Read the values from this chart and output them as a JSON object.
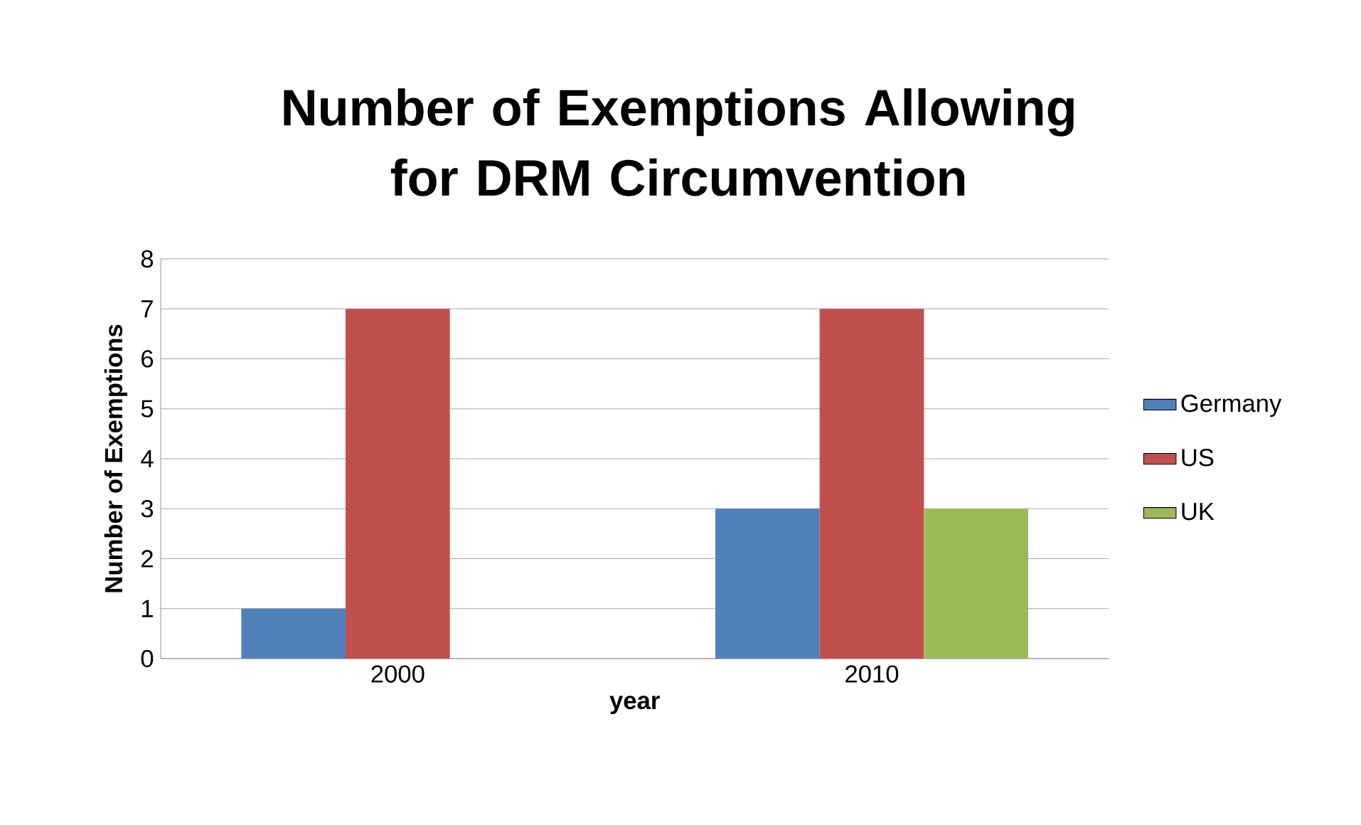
{
  "chart_data": {
    "type": "bar",
    "title": "Number of Exemptions Allowing for DRM Circumvention",
    "xlabel": "year",
    "ylabel": "Number of Exemptions",
    "categories": [
      "2000",
      "2010"
    ],
    "series": [
      {
        "name": "Germany",
        "color": "#4f81bd",
        "values": [
          1,
          3
        ]
      },
      {
        "name": "US",
        "color": "#c0504d",
        "values": [
          7,
          7
        ]
      },
      {
        "name": "UK",
        "color": "#9bbb59",
        "values": [
          0,
          3
        ]
      }
    ],
    "ylim": [
      0,
      8
    ],
    "yticks": [
      0,
      1,
      2,
      3,
      4,
      5,
      6,
      7,
      8
    ],
    "grid": "y",
    "legend": "right"
  }
}
